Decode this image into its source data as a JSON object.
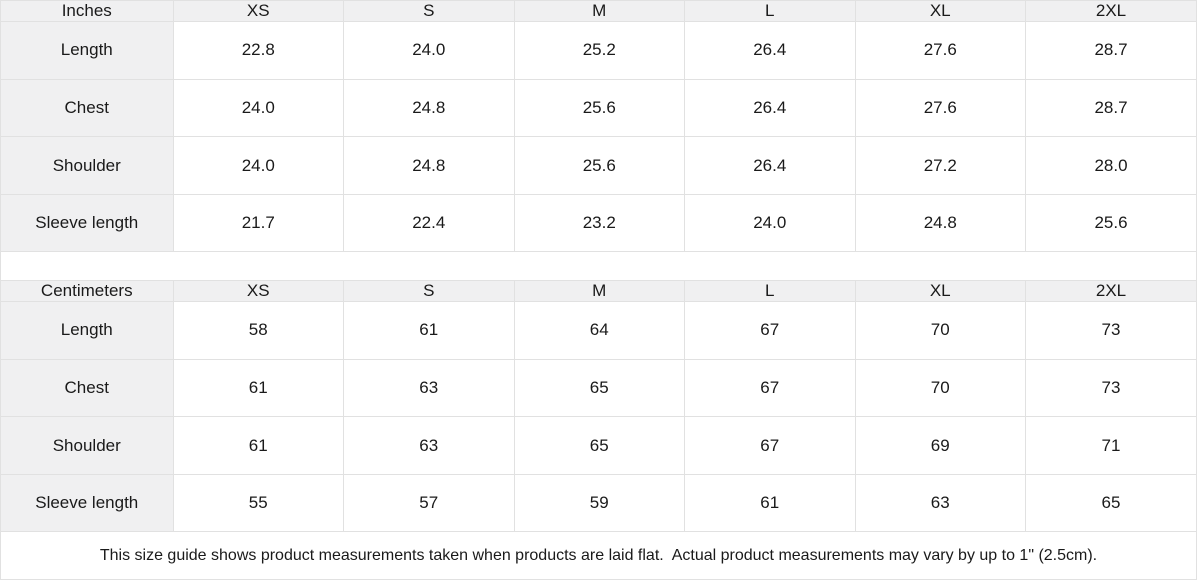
{
  "tables": [
    {
      "id": "inches",
      "unit_label": "Inches",
      "columns": [
        "XS",
        "S",
        "M",
        "L",
        "XL",
        "2XL"
      ],
      "rows": [
        {
          "label": "Length",
          "values": [
            "22.8",
            "24.0",
            "25.2",
            "26.4",
            "27.6",
            "28.7"
          ]
        },
        {
          "label": "Chest",
          "values": [
            "24.0",
            "24.8",
            "25.6",
            "26.4",
            "27.6",
            "28.7"
          ]
        },
        {
          "label": "Shoulder",
          "values": [
            "24.0",
            "24.8",
            "25.6",
            "26.4",
            "27.2",
            "28.0"
          ]
        },
        {
          "label": "Sleeve length",
          "values": [
            "21.7",
            "22.4",
            "23.2",
            "24.0",
            "24.8",
            "25.6"
          ]
        }
      ]
    },
    {
      "id": "centimeters",
      "unit_label": "Centimeters",
      "columns": [
        "XS",
        "S",
        "M",
        "L",
        "XL",
        "2XL"
      ],
      "rows": [
        {
          "label": "Length",
          "values": [
            "58",
            "61",
            "64",
            "67",
            "70",
            "73"
          ]
        },
        {
          "label": "Chest",
          "values": [
            "61",
            "63",
            "65",
            "67",
            "70",
            "73"
          ]
        },
        {
          "label": "Shoulder",
          "values": [
            "61",
            "63",
            "65",
            "67",
            "69",
            "71"
          ]
        },
        {
          "label": "Sleeve length",
          "values": [
            "55",
            "57",
            "59",
            "61",
            "63",
            "65"
          ]
        }
      ]
    }
  ],
  "footer": {
    "note": "This size guide shows product measurements taken when products are laid flat.  Actual product measurements may vary by up to 1\" (2.5cm)."
  },
  "colors": {
    "header_bg": "#f0f0f1",
    "border": "#e1e1e1",
    "text": "#1a1a1a",
    "cell_bg": "#ffffff"
  }
}
